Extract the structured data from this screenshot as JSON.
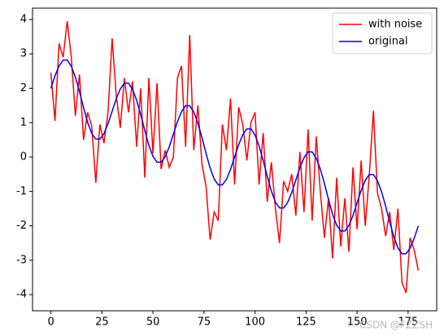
{
  "chart_data": {
    "type": "line",
    "x": [
      0,
      2,
      4,
      6,
      8,
      10,
      12,
      14,
      16,
      18,
      20,
      22,
      24,
      26,
      28,
      30,
      32,
      34,
      36,
      38,
      40,
      42,
      44,
      46,
      48,
      50,
      52,
      54,
      56,
      58,
      60,
      62,
      64,
      66,
      68,
      70,
      72,
      74,
      76,
      78,
      80,
      82,
      84,
      86,
      88,
      90,
      92,
      94,
      96,
      98,
      100,
      102,
      104,
      106,
      108,
      110,
      112,
      114,
      116,
      118,
      120,
      122,
      124,
      126,
      128,
      130,
      132,
      134,
      136,
      138,
      140,
      142,
      144,
      146,
      148,
      150,
      152,
      154,
      156,
      158,
      160,
      162,
      164,
      166,
      168,
      170,
      172,
      174,
      176,
      178,
      180
    ],
    "series": [
      {
        "name": "with noise",
        "color": "#ff0000",
        "values": [
          2.45,
          1.05,
          3.3,
          2.9,
          3.95,
          2.9,
          1.2,
          2.4,
          0.5,
          1.3,
          0.9,
          -0.75,
          0.95,
          0.4,
          1.3,
          3.45,
          1.8,
          0.85,
          2.3,
          1.3,
          2.2,
          0.3,
          2.0,
          -0.6,
          2.3,
          0.1,
          2.15,
          -0.35,
          0.2,
          -0.3,
          0.0,
          2.3,
          2.65,
          0.3,
          3.55,
          0.2,
          1.5,
          -0.2,
          -0.85,
          -2.4,
          -1.6,
          -1.85,
          0.95,
          0.2,
          1.7,
          -0.8,
          1.45,
          0.95,
          -0.1,
          1.0,
          1.3,
          -0.8,
          0.7,
          -1.3,
          -0.15,
          -1.5,
          -2.5,
          -0.7,
          -1.0,
          -0.5,
          -1.7,
          0.15,
          -1.6,
          0.8,
          -1.85,
          0.6,
          -1.0,
          -2.35,
          -1.2,
          -2.95,
          -0.6,
          -2.6,
          -1.2,
          -2.75,
          -0.3,
          -2.1,
          -0.1,
          -2.0,
          -0.5,
          1.35,
          -1.05,
          -1.5,
          -2.3,
          -1.6,
          -2.7,
          -1.5,
          -3.65,
          -3.95,
          -2.35,
          -2.7,
          -3.3
        ]
      },
      {
        "name": "original",
        "color": "#0000ff",
        "values": [
          2.0,
          2.36,
          2.65,
          2.82,
          2.82,
          2.64,
          2.32,
          1.9,
          1.44,
          1.01,
          0.69,
          0.52,
          0.52,
          0.68,
          0.97,
          1.33,
          1.69,
          1.98,
          2.15,
          2.15,
          1.97,
          1.65,
          1.23,
          0.77,
          0.34,
          0.02,
          -0.15,
          -0.15,
          0.01,
          0.3,
          0.67,
          1.03,
          1.32,
          1.49,
          1.49,
          1.31,
          0.99,
          0.57,
          0.11,
          -0.32,
          -0.64,
          -0.81,
          -0.81,
          -0.65,
          -0.36,
          0.0,
          0.36,
          0.65,
          0.82,
          0.82,
          0.64,
          0.32,
          -0.1,
          -0.56,
          -0.99,
          -1.31,
          -1.48,
          -1.48,
          -1.32,
          -1.03,
          -0.67,
          -0.31,
          -0.02,
          0.15,
          0.15,
          -0.03,
          -0.35,
          -0.77,
          -1.23,
          -1.66,
          -1.98,
          -2.15,
          -2.15,
          -1.99,
          -1.7,
          -1.33,
          -0.97,
          -0.68,
          -0.51,
          -0.51,
          -0.69,
          -1.01,
          -1.43,
          -1.89,
          -2.32,
          -2.64,
          -2.81,
          -2.81,
          -2.65,
          -2.36,
          -2.0
        ]
      }
    ],
    "xlim": [
      -9,
      189
    ],
    "xticks": [
      0,
      25,
      50,
      75,
      100,
      125,
      150,
      175
    ],
    "ylim": [
      -4.47,
      4.33
    ],
    "yticks": [
      -4,
      -3,
      -2,
      -1,
      0,
      1,
      2,
      3,
      4
    ],
    "legend": "upper right",
    "watermark": "CSDN @FZZSH"
  }
}
